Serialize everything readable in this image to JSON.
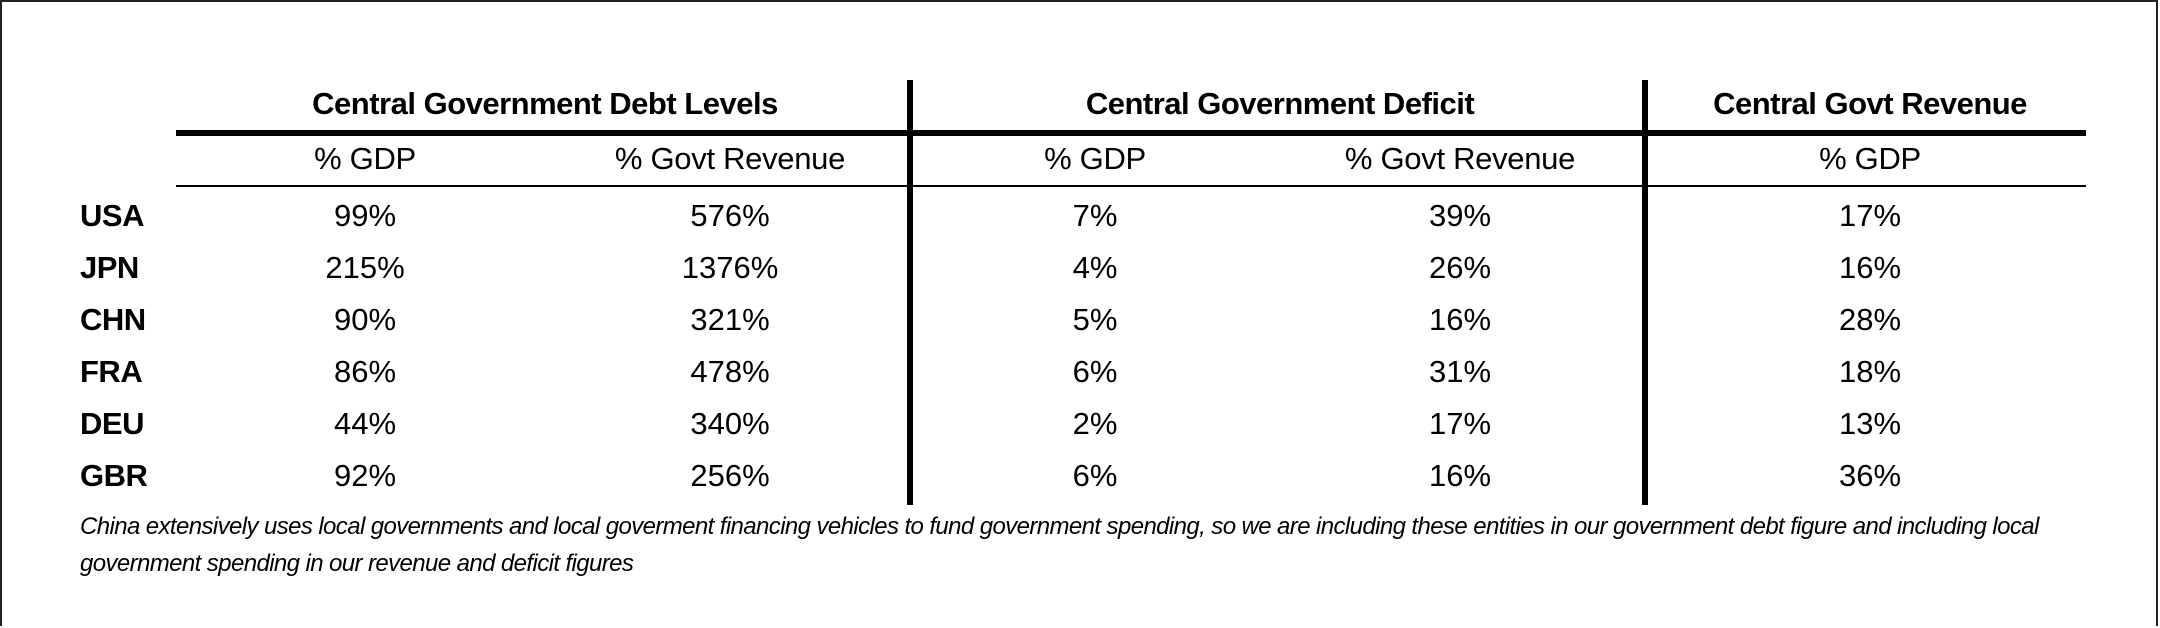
{
  "table": {
    "groups": [
      {
        "title": "Central Government Debt Levels",
        "subheads": [
          "% GDP",
          "% Govt Revenue"
        ]
      },
      {
        "title": "Central Government Deficit",
        "subheads": [
          "% GDP",
          "% Govt Revenue"
        ]
      },
      {
        "title": "Central Govt Revenue",
        "subheads": [
          "% GDP"
        ]
      }
    ],
    "rows": [
      {
        "country": "USA",
        "values": [
          "99%",
          "576%",
          "7%",
          "39%",
          "17%"
        ]
      },
      {
        "country": "JPN",
        "values": [
          "215%",
          "1376%",
          "4%",
          "26%",
          "16%"
        ]
      },
      {
        "country": "CHN",
        "values": [
          "90%",
          "321%",
          "5%",
          "16%",
          "28%"
        ]
      },
      {
        "country": "FRA",
        "values": [
          "86%",
          "478%",
          "6%",
          "31%",
          "18%"
        ]
      },
      {
        "country": "DEU",
        "values": [
          "44%",
          "340%",
          "2%",
          "17%",
          "13%"
        ]
      },
      {
        "country": "GBR",
        "values": [
          "92%",
          "256%",
          "6%",
          "16%",
          "36%"
        ]
      }
    ]
  },
  "footnote": "China extensively uses local governments and local goverment financing vehicles to fund government spending, so we are including these entities in our government debt figure and including local government spending in our revenue and deficit figures"
}
